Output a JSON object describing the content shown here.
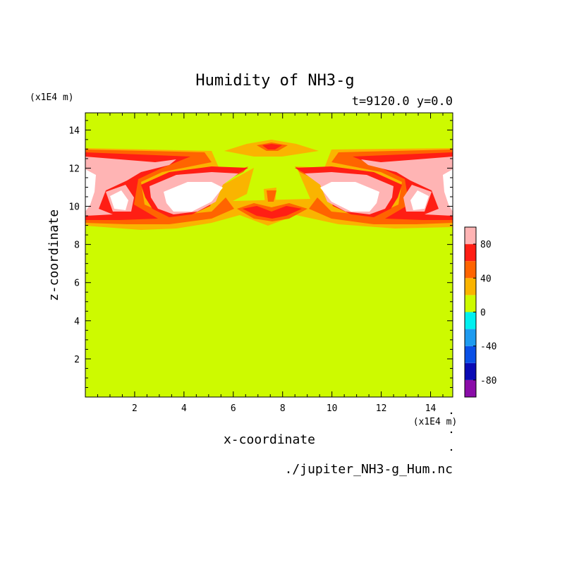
{
  "chart_data": {
    "type": "heatmap",
    "title": "Humidity of NH3-g",
    "subtitle": "t=9120.0 y=0.0",
    "xlabel": "x-coordinate",
    "ylabel": "z-coordinate",
    "x_unit": "(x1E4 m)",
    "y_unit": "(x1E4 m)",
    "xlim": [
      0,
      14.9
    ],
    "ylim": [
      0,
      14.9
    ],
    "x_ticks": [
      2,
      4,
      6,
      8,
      10,
      12,
      14
    ],
    "y_ticks": [
      2,
      4,
      6,
      8,
      10,
      12,
      14
    ],
    "x_tick_labels": [
      "2",
      "4",
      "6",
      "8",
      "10",
      "12",
      "14"
    ],
    "y_tick_labels": [
      "2",
      "4",
      "6",
      "8",
      "10",
      "12",
      "14"
    ],
    "source_file": "./jupiter_NH3-g_Hum.nc",
    "colorbar": {
      "range": [
        -100,
        100
      ],
      "tick_values": [
        80,
        40,
        0,
        -40,
        -80
      ],
      "tick_labels": [
        "80",
        "40",
        "0",
        "-40",
        "-80"
      ],
      "levels": [
        {
          "from": -100,
          "to": -80,
          "color": "#8a0ca8"
        },
        {
          "from": -80,
          "to": -60,
          "color": "#0a0ab4"
        },
        {
          "from": -60,
          "to": -40,
          "color": "#0a50e6"
        },
        {
          "from": -40,
          "to": -20,
          "color": "#1e9bf0"
        },
        {
          "from": -20,
          "to": 0,
          "color": "#00f0f0"
        },
        {
          "from": 0,
          "to": 20,
          "color": "#cdfa00"
        },
        {
          "from": 20,
          "to": 40,
          "color": "#fab400"
        },
        {
          "from": 40,
          "to": 60,
          "color": "#ff6400"
        },
        {
          "from": 60,
          "to": 80,
          "color": "#ff1e14"
        },
        {
          "from": 80,
          "to": 100,
          "color": "#ffb4b4"
        }
      ]
    },
    "over_color": "#ffffff",
    "background_value_color": "#cdfa00",
    "field_regions": [
      {
        "level": "20-40",
        "color": "#fab400",
        "note": "band z~9-13 plus cap near x~7.5,z~13.3"
      },
      {
        "level": "40-60",
        "color": "#ff6400"
      },
      {
        "level": "60-80",
        "color": "#ff1e14"
      },
      {
        "level": "80-100",
        "color": "#ffb4b4"
      },
      {
        "level": ">100",
        "color": "#ffffff"
      }
    ]
  }
}
